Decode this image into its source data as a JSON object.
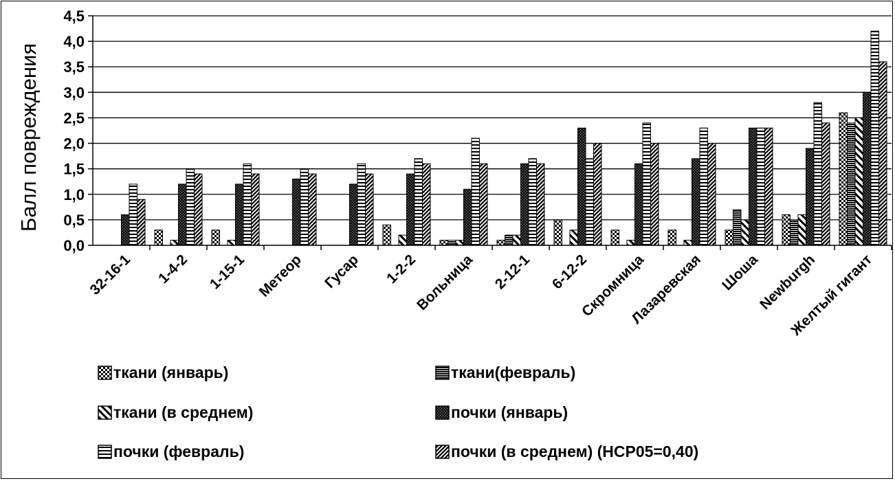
{
  "chart_data": {
    "type": "bar",
    "ylabel": "Балл повреждения",
    "xlabel": "",
    "ylim": [
      0,
      4.5
    ],
    "yticks": [
      "0,0",
      "0,5",
      "1,0",
      "1,5",
      "2,0",
      "2,5",
      "3,0",
      "3,5",
      "4,0",
      "4,5"
    ],
    "grid": true,
    "legend_position": "bottom",
    "categories": [
      "32-16-1",
      "1-4-2",
      "1-15-1",
      "Метеор",
      "Гусар",
      "1-2-2",
      "Вольница",
      "2-12-1",
      "6-12-2",
      "Скромница",
      "Лазаревская",
      "Шоша",
      "Newburgh",
      "Желтый гигант"
    ],
    "series": [
      {
        "name": "ткани (январь)",
        "pattern": "checker",
        "values": [
          0,
          0.3,
          0.3,
          0,
          0,
          0.4,
          0.1,
          0.1,
          0.5,
          0.3,
          0.3,
          0.3,
          0.6,
          2.6
        ]
      },
      {
        "name": "ткани(февраль)",
        "pattern": "hstripe-dense",
        "values": [
          0,
          0,
          0,
          0,
          0,
          0,
          0.1,
          0.2,
          0,
          0,
          0,
          0.7,
          0.5,
          2.4
        ]
      },
      {
        "name": "ткани (в среднем)",
        "pattern": "diag",
        "values": [
          0,
          0.1,
          0.1,
          0,
          0,
          0.2,
          0.1,
          0.2,
          0.3,
          0.1,
          0.1,
          0.5,
          0.6,
          2.5
        ]
      },
      {
        "name": "почки (январь)",
        "pattern": "dark",
        "values": [
          0.6,
          1.2,
          1.2,
          1.3,
          1.2,
          1.4,
          1.1,
          1.6,
          2.3,
          1.6,
          1.7,
          2.3,
          1.9,
          3.0
        ]
      },
      {
        "name": "почки (февраль)",
        "pattern": "hstripe",
        "values": [
          1.2,
          1.5,
          1.6,
          1.5,
          1.6,
          1.7,
          2.1,
          1.7,
          1.7,
          2.4,
          2.3,
          2.3,
          2.8,
          4.2
        ]
      },
      {
        "name": "почки (в среднем) (НСР05=0,40)",
        "pattern": "diag-dense",
        "values": [
          0.9,
          1.4,
          1.4,
          1.4,
          1.4,
          1.6,
          1.6,
          1.6,
          2.0,
          2.0,
          2.0,
          2.3,
          2.4,
          3.6
        ]
      }
    ]
  }
}
